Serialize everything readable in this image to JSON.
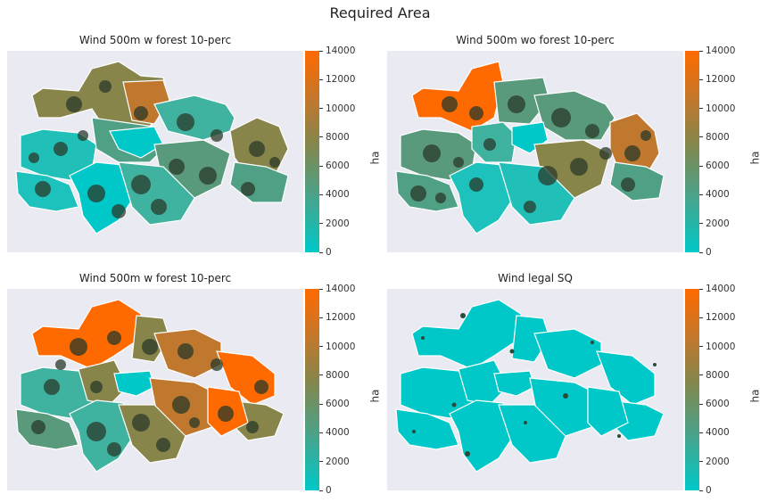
{
  "figure": {
    "title": "Required Area"
  },
  "colorbar": {
    "label": "ha",
    "ticks": [
      "14000",
      "12000",
      "10000",
      "8000",
      "6000",
      "4000",
      "2000",
      "0"
    ],
    "colors": [
      "#00c8c8",
      "#4fa085",
      "#87854a",
      "#c0782e",
      "#ff6a00"
    ]
  },
  "panels": [
    {
      "id": "p1",
      "title": "Wind 500m w forest 10-perc"
    },
    {
      "id": "p2",
      "title": "Wind 500m wo forest 10-perc"
    },
    {
      "id": "p3",
      "title": "Wind 500m w forest 10-perc"
    },
    {
      "id": "p4",
      "title": "Wind legal SQ"
    }
  ],
  "chart_data": {
    "type": "choropleth",
    "colorbar_range": [
      0,
      14000
    ],
    "unit": "ha",
    "panels": [
      {
        "title": "Wind 500m w forest 10-perc",
        "region_values_ha": [
          2500,
          1200,
          800,
          7600,
          9800,
          4200,
          3500,
          2200,
          6600,
          5200,
          4800,
          3000
        ]
      },
      {
        "title": "Wind 500m wo forest 10-perc",
        "region_values_ha": [
          13500,
          6100,
          2800,
          5600,
          4500,
          6200,
          3200,
          9800,
          10200,
          4300,
          2500,
          5200
        ]
      },
      {
        "title": "Wind 500m w forest 10-perc",
        "region_values_ha": [
          13800,
          13000,
          8500,
          6900,
          9800,
          4500,
          9200,
          12800,
          3000,
          5900,
          8800,
          13200
        ]
      },
      {
        "title": "Wind legal SQ",
        "region_values_ha": [
          0,
          0,
          0,
          0,
          0,
          0,
          0,
          0,
          0,
          0,
          0,
          0
        ]
      }
    ]
  }
}
